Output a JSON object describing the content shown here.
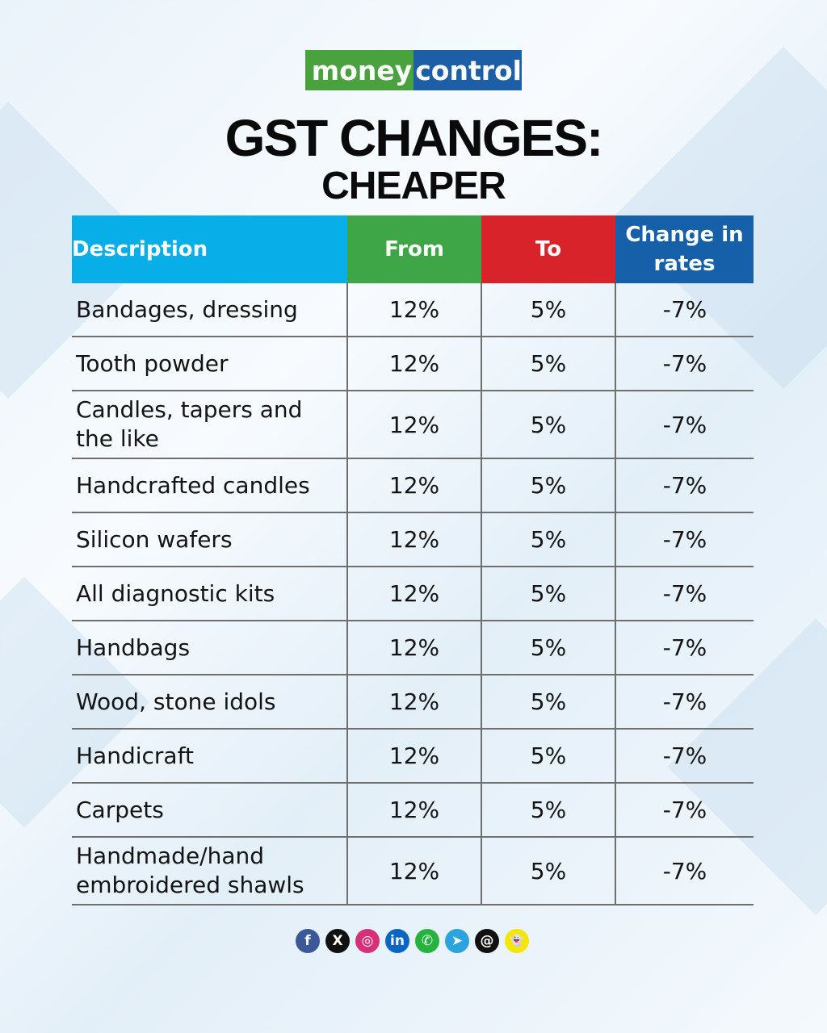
{
  "logo": {
    "part1": "money",
    "part2": "control"
  },
  "title": "GST CHANGES:",
  "subtitle": "CHEAPER",
  "table": {
    "headers": {
      "description": "Description",
      "from": "From",
      "to": "To",
      "change": "Change in rates"
    },
    "rows": [
      {
        "description": "Bandages, dressing",
        "from": "12%",
        "to": "5%",
        "change": "-7%"
      },
      {
        "description": "Tooth powder",
        "from": "12%",
        "to": "5%",
        "change": "-7%"
      },
      {
        "description": "Candles, tapers and the like",
        "from": "12%",
        "to": "5%",
        "change": "-7%"
      },
      {
        "description": "Handcrafted candles",
        "from": "12%",
        "to": "5%",
        "change": "-7%"
      },
      {
        "description": "Silicon wafers",
        "from": "12%",
        "to": "5%",
        "change": "-7%"
      },
      {
        "description": "All diagnostic kits",
        "from": "12%",
        "to": "5%",
        "change": "-7%"
      },
      {
        "description": "Handbags",
        "from": "12%",
        "to": "5%",
        "change": "-7%"
      },
      {
        "description": "Wood, stone idols",
        "from": "12%",
        "to": "5%",
        "change": "-7%"
      },
      {
        "description": "Handicraft",
        "from": "12%",
        "to": "5%",
        "change": "-7%"
      },
      {
        "description": "Carpets",
        "from": "12%",
        "to": "5%",
        "change": "-7%"
      },
      {
        "description": "Handmade/hand embroidered shawls",
        "from": "12%",
        "to": "5%",
        "change": "-7%"
      }
    ]
  },
  "social": [
    {
      "icon": "facebook-icon",
      "glyph": "f",
      "color": "#3b5998"
    },
    {
      "icon": "x-icon",
      "glyph": "X",
      "color": "#111111"
    },
    {
      "icon": "instagram-icon",
      "glyph": "◎",
      "color": "#d6307a"
    },
    {
      "icon": "linkedin-icon",
      "glyph": "in",
      "color": "#0a66c2"
    },
    {
      "icon": "whatsapp-icon",
      "glyph": "✆",
      "color": "#25b33e"
    },
    {
      "icon": "telegram-icon",
      "glyph": "➤",
      "color": "#2aa3df"
    },
    {
      "icon": "threads-icon",
      "glyph": "@",
      "color": "#111111"
    },
    {
      "icon": "snapchat-icon",
      "glyph": "👻",
      "color": "#f5e600"
    }
  ]
}
